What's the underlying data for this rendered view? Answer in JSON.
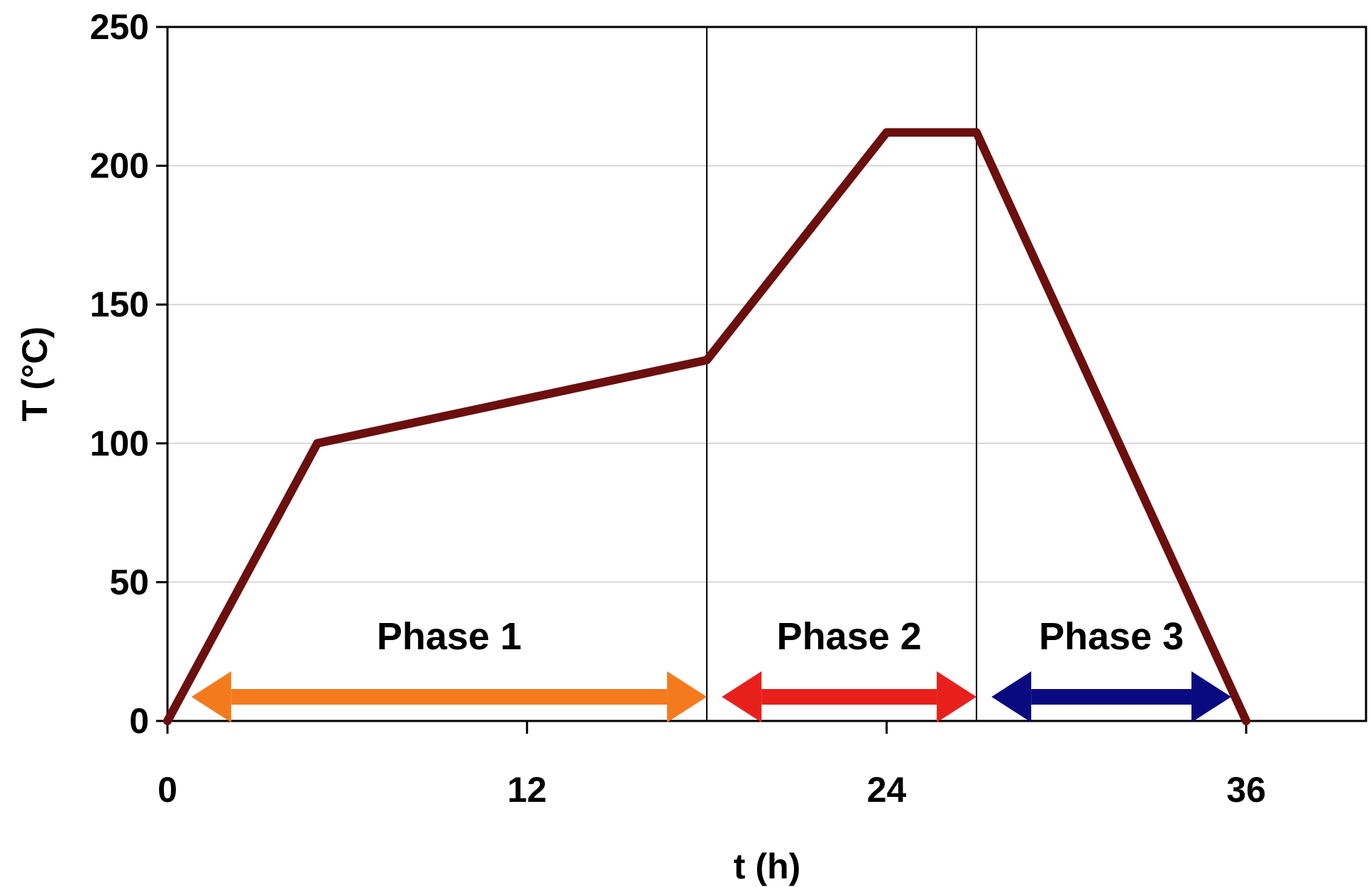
{
  "chart_data": {
    "type": "line",
    "title": "",
    "xlabel": "t (h)",
    "ylabel": "T (°C)",
    "xlim": [
      0,
      40
    ],
    "ylim": [
      0,
      250
    ],
    "xticks": [
      0,
      12,
      24,
      36
    ],
    "yticks": [
      0,
      50,
      100,
      150,
      200,
      250
    ],
    "grid": "horizontal",
    "series": [
      {
        "color": "#6b0f0f",
        "x": [
          0,
          5,
          18,
          24,
          27,
          36
        ],
        "y": [
          0,
          100,
          130,
          212,
          212,
          0
        ]
      }
    ],
    "phase_boundaries": [
      18,
      27
    ],
    "phases": [
      {
        "label": "Phase 1",
        "start": 0.8,
        "end": 18,
        "color": "#f57a1e"
      },
      {
        "label": "Phase 2",
        "start": 18.5,
        "end": 27,
        "color": "#e8201c"
      },
      {
        "label": "Phase 3",
        "start": 27.5,
        "end": 35.5,
        "color": "#0a0a80"
      }
    ]
  }
}
